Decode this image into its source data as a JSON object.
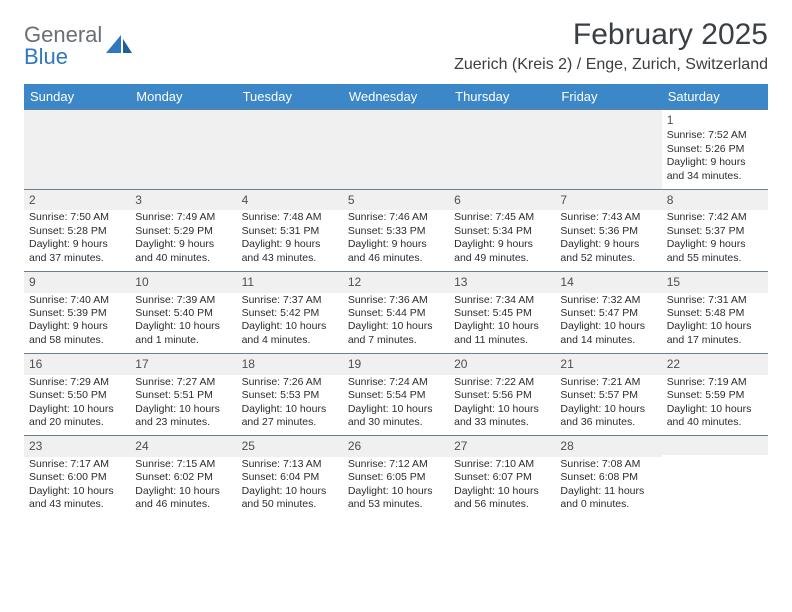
{
  "logo": {
    "word1": "General",
    "word2": "Blue"
  },
  "title": "February 2025",
  "location": "Zuerich (Kreis 2) / Enge, Zurich, Switzerland",
  "dayHeaders": [
    "Sunday",
    "Monday",
    "Tuesday",
    "Wednesday",
    "Thursday",
    "Friday",
    "Saturday"
  ],
  "colors": {
    "header_bg": "#3b87c8",
    "header_text": "#ffffff",
    "shade_bg": "#f0f0f0",
    "rule": "#6b7f94",
    "logo_gray": "#6a6f73",
    "logo_blue": "#2f78bd",
    "title_color": "#3a3f44"
  },
  "weeks": [
    [
      {
        "n": "",
        "lines": []
      },
      {
        "n": "",
        "lines": []
      },
      {
        "n": "",
        "lines": []
      },
      {
        "n": "",
        "lines": []
      },
      {
        "n": "",
        "lines": []
      },
      {
        "n": "",
        "lines": []
      },
      {
        "n": "1",
        "lines": [
          "Sunrise: 7:52 AM",
          "Sunset: 5:26 PM",
          "Daylight: 9 hours and 34 minutes."
        ]
      }
    ],
    [
      {
        "n": "2",
        "lines": [
          "Sunrise: 7:50 AM",
          "Sunset: 5:28 PM",
          "Daylight: 9 hours and 37 minutes."
        ]
      },
      {
        "n": "3",
        "lines": [
          "Sunrise: 7:49 AM",
          "Sunset: 5:29 PM",
          "Daylight: 9 hours and 40 minutes."
        ]
      },
      {
        "n": "4",
        "lines": [
          "Sunrise: 7:48 AM",
          "Sunset: 5:31 PM",
          "Daylight: 9 hours and 43 minutes."
        ]
      },
      {
        "n": "5",
        "lines": [
          "Sunrise: 7:46 AM",
          "Sunset: 5:33 PM",
          "Daylight: 9 hours and 46 minutes."
        ]
      },
      {
        "n": "6",
        "lines": [
          "Sunrise: 7:45 AM",
          "Sunset: 5:34 PM",
          "Daylight: 9 hours and 49 minutes."
        ]
      },
      {
        "n": "7",
        "lines": [
          "Sunrise: 7:43 AM",
          "Sunset: 5:36 PM",
          "Daylight: 9 hours and 52 minutes."
        ]
      },
      {
        "n": "8",
        "lines": [
          "Sunrise: 7:42 AM",
          "Sunset: 5:37 PM",
          "Daylight: 9 hours and 55 minutes."
        ]
      }
    ],
    [
      {
        "n": "9",
        "lines": [
          "Sunrise: 7:40 AM",
          "Sunset: 5:39 PM",
          "Daylight: 9 hours and 58 minutes."
        ]
      },
      {
        "n": "10",
        "lines": [
          "Sunrise: 7:39 AM",
          "Sunset: 5:40 PM",
          "Daylight: 10 hours and 1 minute."
        ]
      },
      {
        "n": "11",
        "lines": [
          "Sunrise: 7:37 AM",
          "Sunset: 5:42 PM",
          "Daylight: 10 hours and 4 minutes."
        ]
      },
      {
        "n": "12",
        "lines": [
          "Sunrise: 7:36 AM",
          "Sunset: 5:44 PM",
          "Daylight: 10 hours and 7 minutes."
        ]
      },
      {
        "n": "13",
        "lines": [
          "Sunrise: 7:34 AM",
          "Sunset: 5:45 PM",
          "Daylight: 10 hours and 11 minutes."
        ]
      },
      {
        "n": "14",
        "lines": [
          "Sunrise: 7:32 AM",
          "Sunset: 5:47 PM",
          "Daylight: 10 hours and 14 minutes."
        ]
      },
      {
        "n": "15",
        "lines": [
          "Sunrise: 7:31 AM",
          "Sunset: 5:48 PM",
          "Daylight: 10 hours and 17 minutes."
        ]
      }
    ],
    [
      {
        "n": "16",
        "lines": [
          "Sunrise: 7:29 AM",
          "Sunset: 5:50 PM",
          "Daylight: 10 hours and 20 minutes."
        ]
      },
      {
        "n": "17",
        "lines": [
          "Sunrise: 7:27 AM",
          "Sunset: 5:51 PM",
          "Daylight: 10 hours and 23 minutes."
        ]
      },
      {
        "n": "18",
        "lines": [
          "Sunrise: 7:26 AM",
          "Sunset: 5:53 PM",
          "Daylight: 10 hours and 27 minutes."
        ]
      },
      {
        "n": "19",
        "lines": [
          "Sunrise: 7:24 AM",
          "Sunset: 5:54 PM",
          "Daylight: 10 hours and 30 minutes."
        ]
      },
      {
        "n": "20",
        "lines": [
          "Sunrise: 7:22 AM",
          "Sunset: 5:56 PM",
          "Daylight: 10 hours and 33 minutes."
        ]
      },
      {
        "n": "21",
        "lines": [
          "Sunrise: 7:21 AM",
          "Sunset: 5:57 PM",
          "Daylight: 10 hours and 36 minutes."
        ]
      },
      {
        "n": "22",
        "lines": [
          "Sunrise: 7:19 AM",
          "Sunset: 5:59 PM",
          "Daylight: 10 hours and 40 minutes."
        ]
      }
    ],
    [
      {
        "n": "23",
        "lines": [
          "Sunrise: 7:17 AM",
          "Sunset: 6:00 PM",
          "Daylight: 10 hours and 43 minutes."
        ]
      },
      {
        "n": "24",
        "lines": [
          "Sunrise: 7:15 AM",
          "Sunset: 6:02 PM",
          "Daylight: 10 hours and 46 minutes."
        ]
      },
      {
        "n": "25",
        "lines": [
          "Sunrise: 7:13 AM",
          "Sunset: 6:04 PM",
          "Daylight: 10 hours and 50 minutes."
        ]
      },
      {
        "n": "26",
        "lines": [
          "Sunrise: 7:12 AM",
          "Sunset: 6:05 PM",
          "Daylight: 10 hours and 53 minutes."
        ]
      },
      {
        "n": "27",
        "lines": [
          "Sunrise: 7:10 AM",
          "Sunset: 6:07 PM",
          "Daylight: 10 hours and 56 minutes."
        ]
      },
      {
        "n": "28",
        "lines": [
          "Sunrise: 7:08 AM",
          "Sunset: 6:08 PM",
          "Daylight: 11 hours and 0 minutes."
        ]
      },
      {
        "n": "",
        "lines": []
      }
    ]
  ]
}
